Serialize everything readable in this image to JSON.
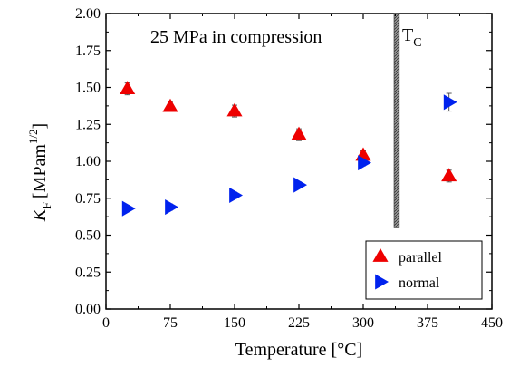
{
  "chart_data": {
    "type": "scatter",
    "title": "",
    "xlabel": "Temperature [°C]",
    "ylabel": "K_F [MPam^1/2]",
    "ylabel_parts": {
      "symbol": "K",
      "subscript": "F",
      "unit": "[MPam",
      "exponent": "1/2",
      "close": "]"
    },
    "xlim": [
      0,
      450
    ],
    "ylim": [
      0.0,
      2.0
    ],
    "xticks": [
      0,
      75,
      150,
      225,
      300,
      375,
      450
    ],
    "xtick_labels": [
      "0",
      "75",
      "150",
      "225",
      "300",
      "375",
      "450"
    ],
    "yticks": [
      0.0,
      0.25,
      0.5,
      0.75,
      1.0,
      1.25,
      1.5,
      1.75,
      2.0
    ],
    "ytick_labels": [
      "0.00",
      "0.25",
      "0.50",
      "0.75",
      "1.00",
      "1.25",
      "1.50",
      "1.75",
      "2.00"
    ],
    "annotation": "25 MPa in compression",
    "curie_label": {
      "main": "T",
      "sub": "C"
    },
    "curie_band": {
      "x": [
        336,
        342
      ],
      "y": [
        0.55,
        2.0
      ]
    },
    "grid": false,
    "legend_position": "bottom-right",
    "series": [
      {
        "name": "parallel",
        "marker": "triangle-up",
        "color": "#ee0000",
        "points": [
          {
            "x": 25,
            "y": 1.49,
            "err": 0.04
          },
          {
            "x": 75,
            "y": 1.37,
            "err": 0.03
          },
          {
            "x": 150,
            "y": 1.34,
            "err": 0.04
          },
          {
            "x": 225,
            "y": 1.18,
            "err": 0.04
          },
          {
            "x": 300,
            "y": 1.04,
            "err": 0.03
          },
          {
            "x": 400,
            "y": 0.9,
            "err": 0.04
          }
        ]
      },
      {
        "name": "normal",
        "marker": "triangle-right",
        "color": "#0022ee",
        "points": [
          {
            "x": 25,
            "y": 0.68,
            "err": 0.02
          },
          {
            "x": 75,
            "y": 0.69,
            "err": 0.02
          },
          {
            "x": 150,
            "y": 0.77,
            "err": 0.02
          },
          {
            "x": 225,
            "y": 0.84,
            "err": 0.02
          },
          {
            "x": 300,
            "y": 0.99,
            "err": 0.02
          },
          {
            "x": 400,
            "y": 1.4,
            "err": 0.06
          }
        ]
      }
    ]
  }
}
